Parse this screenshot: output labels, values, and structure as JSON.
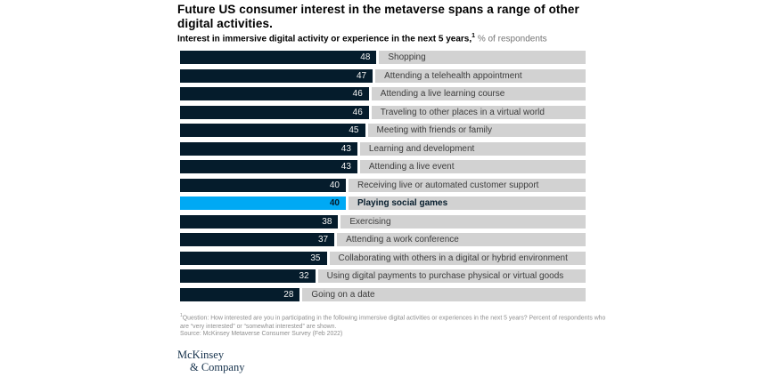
{
  "header": {
    "title": "Future US consumer interest in the metaverse spans a range of other\ndigital activities.",
    "subtitle_bold": "Interest in immersive digital activity or experience in the next 5 years,",
    "subtitle_superscript": "1",
    "subtitle_regular": " % of respondents"
  },
  "chart_data": {
    "type": "bar",
    "orientation": "horizontal",
    "unit": "% of respondents",
    "xlim": [
      0,
      100
    ],
    "categories": [
      "Shopping",
      "Attending a telehealth appointment",
      "Attending a live learning course",
      "Traveling to other places in a virtual world",
      "Meeting with friends or family",
      "Learning and development",
      "Attending a live event",
      "Receiving live or automated customer support",
      "Playing social games",
      "Exercising",
      "Attending a work conference",
      "Collaborating with others in a digital or hybrid environment",
      "Using digital payments to purchase physical or virtual goods",
      "Going on a date"
    ],
    "values": [
      48,
      47,
      46,
      46,
      45,
      43,
      43,
      40,
      40,
      38,
      37,
      35,
      32,
      28
    ],
    "highlight_index": 8,
    "highlight_category": "Playing social games",
    "colors": {
      "bar": "#051C2C",
      "highlight": "#00A9F4",
      "track": "#D2D2D2"
    },
    "legend": "none",
    "grid": false
  },
  "footnote": {
    "superscript": "1",
    "text": "Question: How interested are you in participating in the following immersive digital activities or experiences in the next 5 years? Percent of respondents who\nare “very interested” or “somewhat interested” are shown.",
    "source": "Source: McKinsey Metaverse Consumer Survey (Feb 2022)"
  },
  "logo": {
    "line1": "McKinsey",
    "line2": "& Company"
  }
}
